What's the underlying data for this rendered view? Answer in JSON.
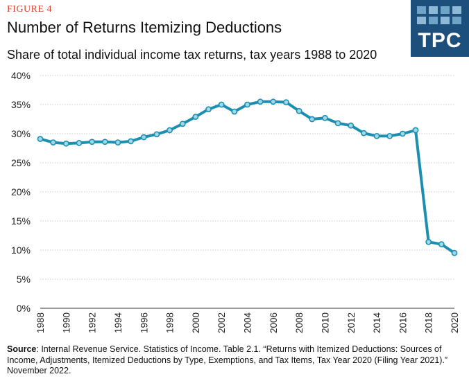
{
  "header": {
    "figure_label": "FIGURE 4",
    "title": "Number of Returns Itemizing Deductions",
    "subtitle": "Share of total individual income tax returns, tax years 1988 to 2020"
  },
  "logo": {
    "text": "TPC",
    "color": "#1c4f7c"
  },
  "source": {
    "label": "Source",
    "text": ":  Internal Revenue Service. Statistics of Income. Table 2.1. “Returns with Itemized Deductions:  Sources of Income, Adjustments, Itemized Deductions by Type, Exemptions, and Tax Items, Tax Year 2020 (Filing Year 2021).” November 2022."
  },
  "chart_data": {
    "type": "line",
    "x": [
      1988,
      1989,
      1990,
      1991,
      1992,
      1993,
      1994,
      1995,
      1996,
      1997,
      1998,
      1999,
      2000,
      2001,
      2002,
      2003,
      2004,
      2005,
      2006,
      2007,
      2008,
      2009,
      2010,
      2011,
      2012,
      2013,
      2014,
      2015,
      2016,
      2017,
      2018,
      2019,
      2020
    ],
    "series": [
      {
        "values": [
          29.1,
          28.5,
          28.3,
          28.4,
          28.6,
          28.6,
          28.5,
          28.7,
          29.4,
          29.9,
          30.6,
          31.7,
          32.9,
          34.2,
          35.0,
          33.8,
          35.0,
          35.5,
          35.5,
          35.4,
          33.9,
          32.5,
          32.7,
          31.8,
          31.4,
          30.1,
          29.6,
          29.6,
          30.0,
          30.6,
          11.4,
          11.0,
          9.5
        ],
        "color": "#1c8fb0"
      }
    ],
    "x_ticks": [
      "1988",
      "1990",
      "1992",
      "1994",
      "1996",
      "1998",
      "2000",
      "2002",
      "2004",
      "2006",
      "2008",
      "2010",
      "2012",
      "2014",
      "2016",
      "2018",
      "2020"
    ],
    "y_ticks": [
      "0%",
      "5%",
      "10%",
      "15%",
      "20%",
      "25%",
      "30%",
      "35%",
      "40%"
    ],
    "ylim": [
      0,
      40
    ],
    "xlim": [
      1988,
      2020
    ],
    "grid": true
  }
}
